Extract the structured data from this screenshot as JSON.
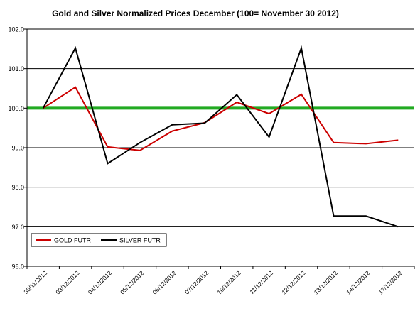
{
  "chart_data": {
    "type": "line",
    "title": "Gold and Silver Normalized Prices December (100= November 30 2012)",
    "xlabel": "",
    "ylabel": "",
    "x": [
      "30/11/2012",
      "03/12/2012",
      "04/12/2012",
      "05/12/2012",
      "06/12/2012",
      "07/12/2012",
      "10/12/2012",
      "11/12/2012",
      "12/12/2012",
      "13/12/2012",
      "14/12/2012",
      "17/12/2012"
    ],
    "y_ticks": [
      "96.0",
      "97.0",
      "98.0",
      "99.0",
      "100.0",
      "101.0",
      "102.0"
    ],
    "ylim": [
      96,
      102
    ],
    "grid": true,
    "legend": "inside-lower-left",
    "reference_line": {
      "value": 100,
      "color": "#22aa22"
    },
    "series": [
      {
        "name": "GOLD  FUTR",
        "color": "#cc0000",
        "values": [
          100.0,
          100.53,
          99.02,
          98.93,
          99.42,
          99.63,
          100.15,
          99.86,
          100.35,
          99.13,
          99.1,
          99.19
        ]
      },
      {
        "name": "SILVER  FUTR",
        "color": "#000000",
        "values": [
          100.0,
          101.52,
          98.6,
          99.13,
          99.58,
          99.62,
          100.34,
          99.27,
          101.52,
          97.27,
          97.27,
          97.0
        ]
      }
    ]
  }
}
